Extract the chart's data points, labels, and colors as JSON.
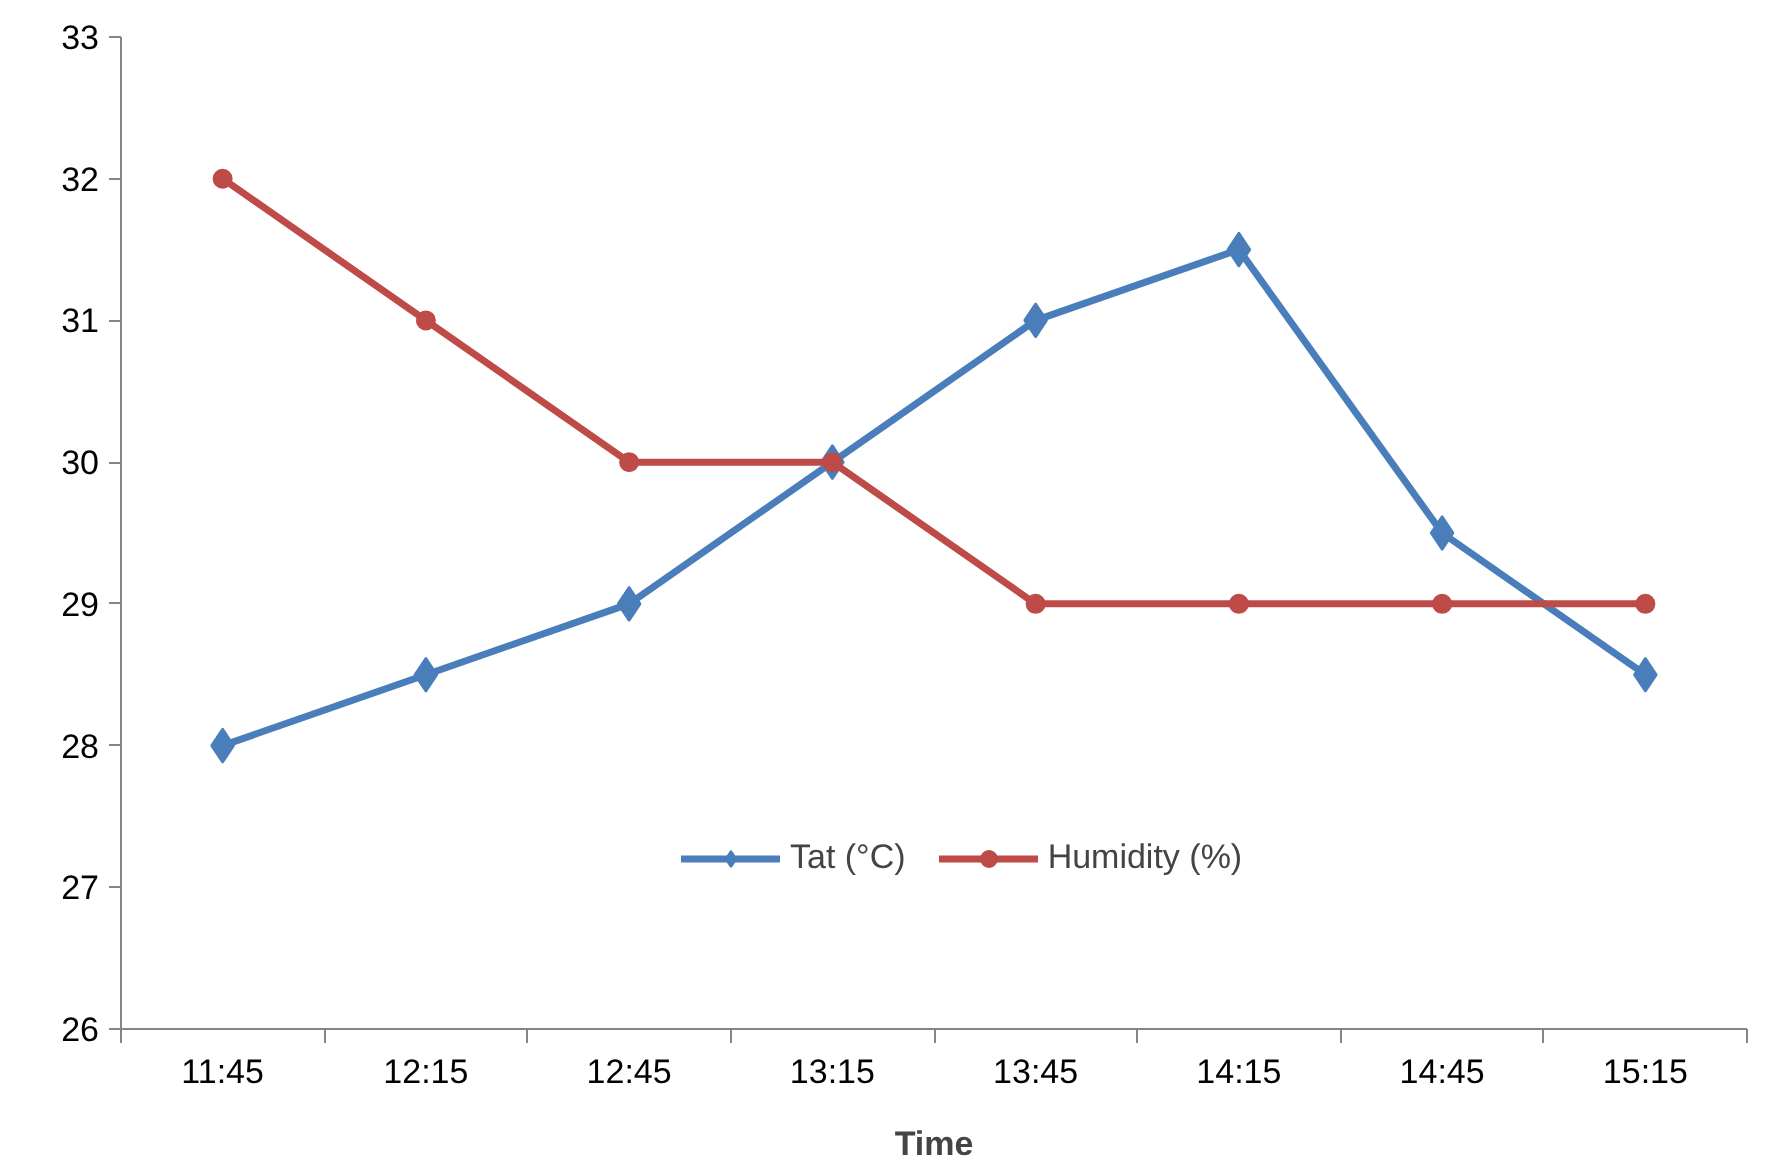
{
  "chart_data": {
    "type": "line",
    "xlabel": "Time",
    "categories": [
      "11:45",
      "12:15",
      "12:45",
      "13:15",
      "13:45",
      "14:15",
      "14:45",
      "15:15"
    ],
    "series": [
      {
        "name": "Tat (°C)",
        "color": "#4a7ebb",
        "marker": "diamond",
        "values": [
          28,
          28.5,
          29,
          30,
          31,
          31.5,
          29.5,
          28.5
        ]
      },
      {
        "name": "Humidity (%)",
        "color": "#be4b48",
        "marker": "circle",
        "values": [
          32,
          31,
          30,
          30,
          29,
          29,
          29,
          29
        ]
      }
    ],
    "ylim": [
      26,
      33
    ],
    "yticks": [
      26,
      27,
      28,
      29,
      30,
      31,
      32,
      33
    ],
    "grid": false,
    "legend": "bottom",
    "line_style": "solid"
  }
}
